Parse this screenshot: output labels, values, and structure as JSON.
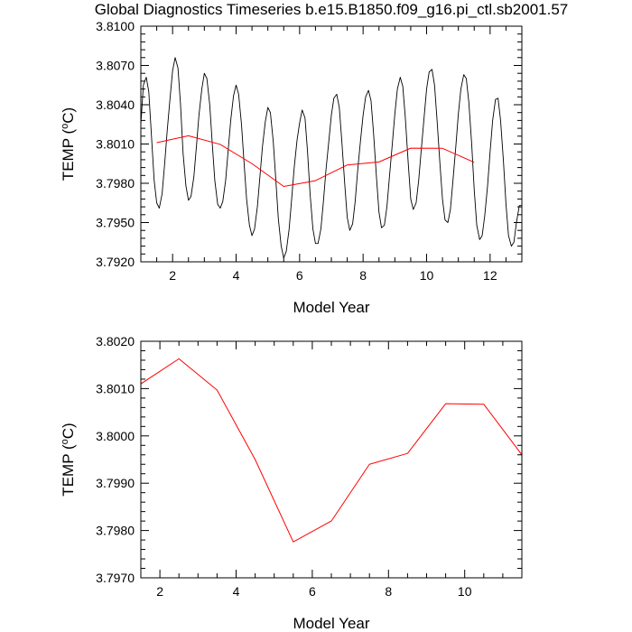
{
  "title": "Global Diagnostics Timeseries b.e15.B1850.f09_g16.pi_ctl.sb2001.57",
  "colors": {
    "monthly": "#000000",
    "annual": "#ff0000",
    "axes": "#000000"
  },
  "chart_data": [
    {
      "type": "line",
      "panel": "top",
      "xlabel": "Model Year",
      "ylabel": "TEMP (°C)",
      "ylabel_base": "TEMP (",
      "ylabel_sup": "o",
      "ylabel_unit": "C)",
      "xlim": [
        1.0,
        13.0
      ],
      "ylim": [
        3.792,
        3.81
      ],
      "xticks": [
        2,
        4,
        6,
        8,
        10,
        12
      ],
      "xtick_labels": [
        "2",
        "4",
        "6",
        "8",
        "10",
        "12"
      ],
      "yticks": [
        3.792,
        3.795,
        3.798,
        3.801,
        3.804,
        3.807,
        3.81
      ],
      "ytick_labels": [
        "3.7920",
        "3.7950",
        "3.7980",
        "3.8010",
        "3.8040",
        "3.8070",
        "3.8100"
      ],
      "series": [
        {
          "style": "monthly",
          "x": [
            1.0,
            1.08,
            1.17,
            1.25,
            1.33,
            1.42,
            1.5,
            1.58,
            1.67,
            1.75,
            1.83,
            1.92,
            2.0,
            2.08,
            2.17,
            2.25,
            2.33,
            2.42,
            2.5,
            2.58,
            2.67,
            2.75,
            2.83,
            2.92,
            3.0,
            3.08,
            3.17,
            3.25,
            3.33,
            3.42,
            3.5,
            3.58,
            3.67,
            3.75,
            3.83,
            3.92,
            4.0,
            4.08,
            4.17,
            4.25,
            4.33,
            4.42,
            4.5,
            4.58,
            4.67,
            4.75,
            4.83,
            4.92,
            5.0,
            5.08,
            5.17,
            5.25,
            5.33,
            5.42,
            5.5,
            5.58,
            5.67,
            5.75,
            5.83,
            5.92,
            6.0,
            6.08,
            6.17,
            6.25,
            6.33,
            6.42,
            6.5,
            6.58,
            6.67,
            6.75,
            6.83,
            6.92,
            7.0,
            7.08,
            7.17,
            7.25,
            7.33,
            7.42,
            7.5,
            7.58,
            7.67,
            7.75,
            7.83,
            7.92,
            8.0,
            8.08,
            8.17,
            8.25,
            8.33,
            8.42,
            8.5,
            8.58,
            8.67,
            8.75,
            8.83,
            8.92,
            9.0,
            9.08,
            9.17,
            9.25,
            9.33,
            9.42,
            9.5,
            9.58,
            9.67,
            9.75,
            9.83,
            9.92,
            10.0,
            10.08,
            10.17,
            10.25,
            10.33,
            10.42,
            10.5,
            10.58,
            10.67,
            10.75,
            10.83,
            10.92,
            11.0,
            11.08,
            11.17,
            11.25,
            11.33,
            11.42,
            11.5,
            11.58,
            11.67,
            11.75,
            11.83,
            11.92,
            12.0,
            12.08,
            12.17,
            12.25,
            12.33,
            12.42,
            12.5,
            12.58,
            12.67,
            12.75,
            12.83,
            12.92,
            13.0
          ],
          "values": [
            3.8025,
            3.8055,
            3.8061,
            3.805,
            3.8018,
            3.7982,
            3.7965,
            3.7961,
            3.7972,
            3.7995,
            3.802,
            3.8045,
            3.8066,
            3.8076,
            3.8068,
            3.804,
            3.8003,
            3.7978,
            3.7967,
            3.797,
            3.7985,
            3.8008,
            3.8032,
            3.8052,
            3.8064,
            3.806,
            3.804,
            3.801,
            3.7982,
            3.7964,
            3.7961,
            3.7966,
            3.7982,
            3.8005,
            3.8028,
            3.8047,
            3.8055,
            3.8048,
            3.8025,
            3.7996,
            3.7968,
            3.7948,
            3.794,
            3.7945,
            3.7962,
            3.7985,
            3.8008,
            3.8027,
            3.8038,
            3.8034,
            3.8012,
            3.7983,
            3.7953,
            3.7932,
            3.7923,
            3.7928,
            3.7945,
            3.7968,
            3.7992,
            3.8013,
            3.8026,
            3.8036,
            3.803,
            3.8004,
            3.7972,
            3.7945,
            3.7934,
            3.7934,
            3.7945,
            3.7966,
            3.799,
            3.8012,
            3.8032,
            3.8045,
            3.8048,
            3.8038,
            3.8012,
            3.798,
            3.7954,
            3.7944,
            3.7949,
            3.7966,
            3.799,
            3.8013,
            3.8032,
            3.8046,
            3.8051,
            3.8043,
            3.8018,
            3.7985,
            3.7958,
            3.7946,
            3.7948,
            3.7962,
            3.7985,
            3.801,
            3.8033,
            3.8052,
            3.8061,
            3.8054,
            3.803,
            3.7996,
            3.7968,
            3.796,
            3.7965,
            3.7982,
            3.8005,
            3.803,
            3.8052,
            3.8065,
            3.8067,
            3.8055,
            3.8028,
            3.7995,
            3.7968,
            3.7952,
            3.795,
            3.796,
            3.7982,
            3.8008,
            3.8033,
            3.8052,
            3.8063,
            3.806,
            3.8042,
            3.801,
            3.7975,
            3.7948,
            3.7937,
            3.794,
            3.7955,
            3.7978,
            3.8004,
            3.8028,
            3.8044,
            3.8045,
            3.8028,
            3.7997,
            3.7964,
            3.794,
            3.7932,
            3.7935,
            3.795,
            3.7963,
            3.7963
          ]
        },
        {
          "style": "annual",
          "x": [
            1.5,
            2.5,
            3.5,
            4.5,
            5.5,
            6.5,
            7.5,
            8.5,
            9.5,
            10.5,
            11.5
          ],
          "values": [
            3.8011,
            3.80163,
            3.80097,
            3.7995,
            3.79776,
            3.7982,
            3.7994,
            3.79963,
            3.80068,
            3.80067,
            3.7996
          ]
        }
      ]
    },
    {
      "type": "line",
      "panel": "bottom",
      "xlabel": "Model Year",
      "ylabel": "TEMP (°C)",
      "ylabel_base": "TEMP (",
      "ylabel_sup": "o",
      "ylabel_unit": "C)",
      "xlim": [
        1.5,
        11.5
      ],
      "ylim": [
        3.797,
        3.802
      ],
      "xticks": [
        2,
        4,
        6,
        8,
        10
      ],
      "xtick_labels": [
        "2",
        "4",
        "6",
        "8",
        "10"
      ],
      "yticks": [
        3.797,
        3.798,
        3.799,
        3.8,
        3.801,
        3.802
      ],
      "ytick_labels": [
        "3.7970",
        "3.7980",
        "3.7990",
        "3.8000",
        "3.8010",
        "3.8020"
      ],
      "series": [
        {
          "style": "annual",
          "x": [
            1.5,
            2.5,
            3.5,
            4.5,
            5.5,
            6.5,
            7.5,
            8.5,
            9.5,
            10.5,
            11.5
          ],
          "values": [
            3.8011,
            3.80163,
            3.80097,
            3.7995,
            3.79776,
            3.7982,
            3.7994,
            3.79963,
            3.80068,
            3.80067,
            3.7996
          ]
        }
      ]
    }
  ]
}
